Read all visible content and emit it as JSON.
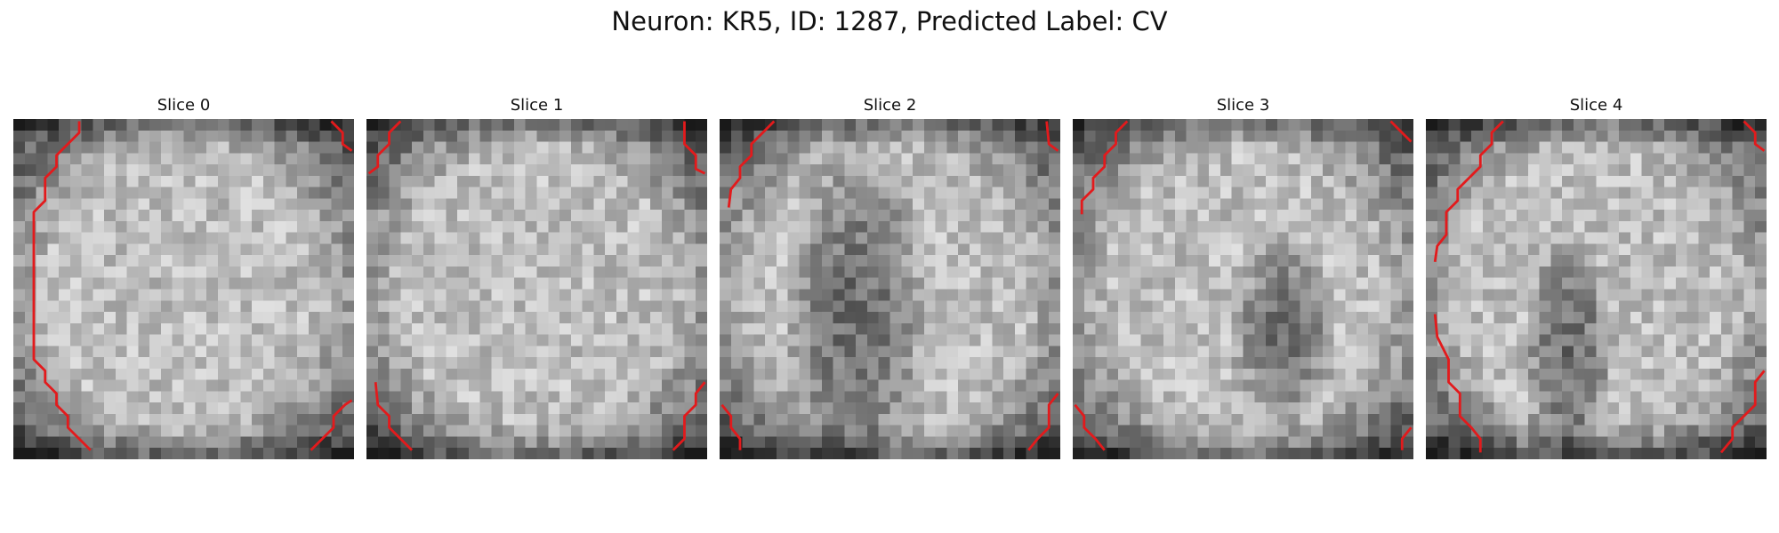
{
  "figure": {
    "title": "Neuron: KR5, ID: 1287, Predicted Label: CV"
  },
  "slices": [
    {
      "title": "Slice 0",
      "seed": 11,
      "dark_spots": []
    },
    {
      "title": "Slice 1",
      "seed": 23,
      "dark_spots": []
    },
    {
      "title": "Slice 2",
      "seed": 37,
      "dark_spots": [
        [
          0.4,
          0.58,
          0.22,
          0.55
        ]
      ]
    },
    {
      "title": "Slice 3",
      "seed": 51,
      "dark_spots": [
        [
          0.62,
          0.62,
          0.16,
          0.3
        ]
      ]
    },
    {
      "title": "Slice 4",
      "seed": 67,
      "dark_spots": [
        [
          0.42,
          0.7,
          0.14,
          0.4
        ]
      ]
    }
  ],
  "colors": {
    "contour": "#e31a1c",
    "background": "#ffffff"
  },
  "image": {
    "grid_size": 30,
    "colormap": "gray"
  }
}
